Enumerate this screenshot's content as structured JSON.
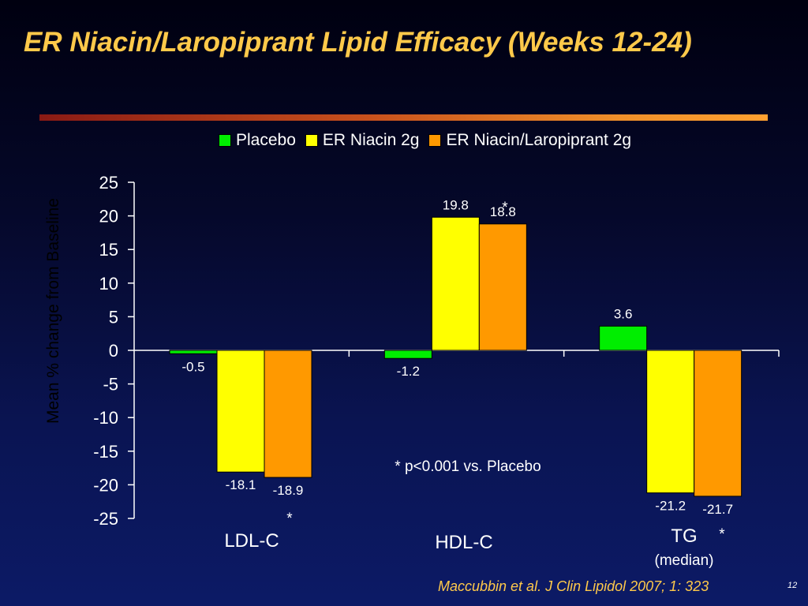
{
  "slide": {
    "title": "ER Niacin/Laropiprant Lipid Efficacy (Weeks 12-24)",
    "citation": "Maccubbin et al. J Clin Lipidol 2007; 1: 323",
    "page_number": "12",
    "footnote": "* p<0.001 vs. Placebo"
  },
  "colors": {
    "title": "#ffc94a",
    "placebo": "#00ee00",
    "er_niacin": "#ffff00",
    "er_niacin_laropiprant": "#ff9900"
  },
  "chart_data": {
    "type": "bar",
    "title": "",
    "ylabel": "Mean % change from Baseline",
    "ylim": [
      -25,
      25
    ],
    "yticks": [
      "25",
      "20",
      "15",
      "10",
      "5",
      "0",
      "-5",
      "-10",
      "-15",
      "-20",
      "-25"
    ],
    "ytick_values": [
      25,
      20,
      15,
      10,
      5,
      0,
      -5,
      -10,
      -15,
      -20,
      -25
    ],
    "legend_position": "top",
    "categories": [
      "LDL-C",
      "HDL-C",
      "TG"
    ],
    "category_notes": [
      "",
      "",
      "(median)"
    ],
    "significance_marks": [
      "*",
      "*",
      "*"
    ],
    "series": [
      {
        "name": "Placebo",
        "values": [
          -0.5,
          -1.2,
          3.6
        ],
        "labels": [
          "-0.5",
          "-1.2",
          "3.6"
        ]
      },
      {
        "name": "ER Niacin 2g",
        "values": [
          -18.1,
          19.8,
          -21.2
        ],
        "labels": [
          "-18.1",
          "19.8",
          "-21.2"
        ]
      },
      {
        "name": "ER Niacin/Laropiprant 2g",
        "values": [
          -18.9,
          18.8,
          -21.7
        ],
        "labels": [
          "-18.9",
          "18.8",
          "-21.7"
        ]
      }
    ]
  }
}
